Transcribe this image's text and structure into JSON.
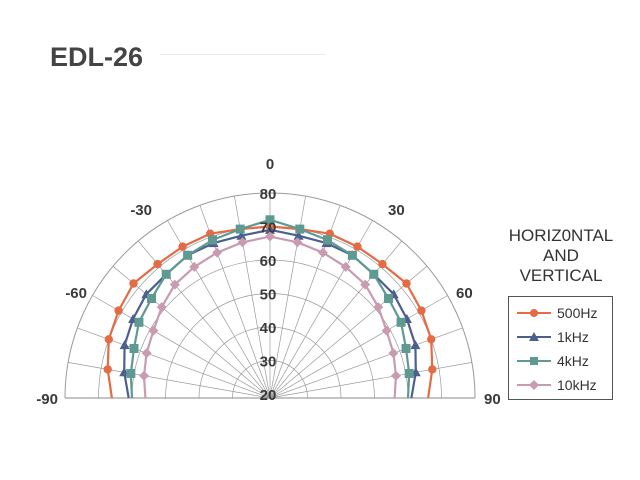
{
  "title": "EDL-26",
  "chart_data": {
    "type": "polar-line",
    "angle_range": [
      -90,
      90
    ],
    "angle_ticks": [
      0,
      -30,
      30,
      -60,
      60,
      -90,
      90
    ],
    "angle_tick_labels": [
      "0",
      "-30",
      "30",
      "-60",
      "60",
      "-90",
      "90"
    ],
    "radial_range": [
      20,
      80
    ],
    "radial_ticks": [
      20,
      30,
      40,
      50,
      60,
      70,
      80
    ],
    "radial_tick_labels": [
      "20",
      "30",
      "40",
      "50",
      "60",
      "70",
      "80"
    ],
    "grid": true,
    "legend_title_lines": [
      "HORIZ0NTAL",
      "AND",
      "VERTICAL"
    ],
    "legend_position": "right",
    "angles": [
      -90,
      -80,
      -70,
      -60,
      -50,
      -40,
      -30,
      -20,
      -10,
      0,
      10,
      20,
      30,
      40,
      50,
      60,
      70,
      80,
      90
    ],
    "series": [
      {
        "name": "500Hz",
        "color": "#E36B45",
        "marker": "circle",
        "values": [
          66,
          68,
          70,
          71,
          72,
          71,
          71,
          71,
          70,
          70,
          70,
          71,
          71,
          71,
          72,
          71,
          70,
          68,
          66
        ]
      },
      {
        "name": "1kHz",
        "color": "#4C5F8F",
        "marker": "triangle",
        "values": [
          61,
          63,
          65,
          66,
          67,
          67,
          68,
          68,
          68,
          69,
          68,
          68,
          68,
          67,
          67,
          66,
          65,
          63,
          61
        ]
      },
      {
        "name": "4kHz",
        "color": "#5E9A92",
        "marker": "square",
        "values": [
          60,
          61,
          62,
          64,
          65,
          67,
          68,
          69,
          70,
          72,
          70,
          69,
          68,
          67,
          65,
          64,
          62,
          61,
          60
        ]
      },
      {
        "name": "10kHz",
        "color": "#C89BB0",
        "marker": "diamond",
        "values": [
          56,
          57,
          58,
          59,
          61,
          63,
          64,
          65,
          66,
          67,
          66,
          65,
          64,
          63,
          61,
          59,
          58,
          57,
          56
        ]
      }
    ]
  }
}
